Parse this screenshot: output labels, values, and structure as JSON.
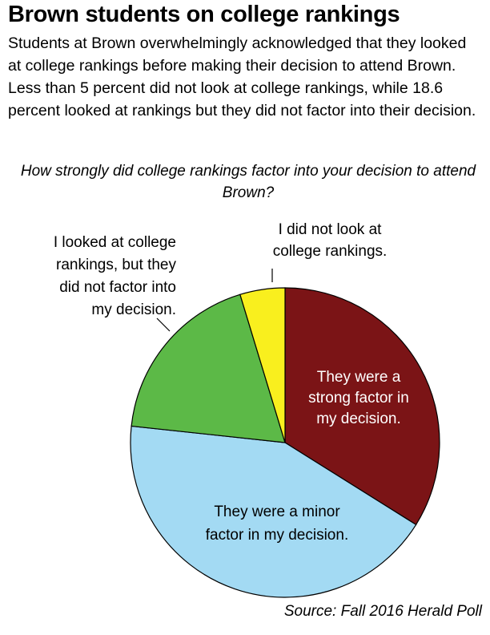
{
  "chart_data": {
    "type": "pie",
    "title": "Brown students on college rankings",
    "subtitle": "Students at Brown overwhelmingly acknowledged that they looked at college rankings before making their decision to attend Brown. Less than 5 percent did not look at college rankings, while 18.6 percent looked at rankings but they did not factor into their decision.",
    "question": "How strongly did college rankings factor into your decision to attend Brown?",
    "source": "Source: Fall 2016 Herald Poll",
    "slices": [
      {
        "key": "strong",
        "name": "They were a strong factor in my decision.",
        "lines": [
          "They were a",
          "strong factor in",
          "my decision."
        ],
        "value": 33.9,
        "color": "#7b1416",
        "text_color": "#ffffff"
      },
      {
        "key": "minor",
        "name": "They were a minor factor in my decision.",
        "lines": [
          "They were a minor",
          "factor in my decision."
        ],
        "value": 42.8,
        "color": "#a3daf3",
        "text_color": "#000000"
      },
      {
        "key": "not_factor",
        "name": "I looked at college rankings, but they did not factor into my decision.",
        "lines": [
          "I looked at college",
          "rankings, but they",
          "did not factor into",
          "my decision."
        ],
        "value": 18.6,
        "color": "#5cb947",
        "text_color": "#000000"
      },
      {
        "key": "not_look",
        "name": "I did not look at college rankings.",
        "lines": [
          "I did not look at",
          "college rankings."
        ],
        "value": 4.7,
        "color": "#f9ef1e",
        "text_color": "#000000"
      }
    ]
  }
}
